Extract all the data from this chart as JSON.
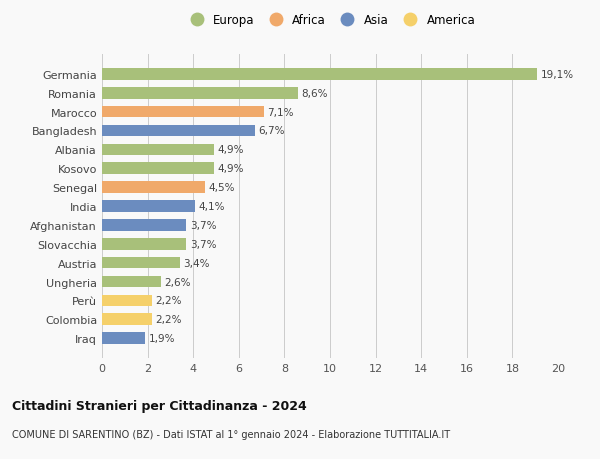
{
  "categories": [
    "Germania",
    "Romania",
    "Marocco",
    "Bangladesh",
    "Albania",
    "Kosovo",
    "Senegal",
    "India",
    "Afghanistan",
    "Slovacchia",
    "Austria",
    "Ungheria",
    "Perù",
    "Colombia",
    "Iraq"
  ],
  "values": [
    19.1,
    8.6,
    7.1,
    6.7,
    4.9,
    4.9,
    4.5,
    4.1,
    3.7,
    3.7,
    3.4,
    2.6,
    2.2,
    2.2,
    1.9
  ],
  "labels": [
    "19,1%",
    "8,6%",
    "7,1%",
    "6,7%",
    "4,9%",
    "4,9%",
    "4,5%",
    "4,1%",
    "3,7%",
    "3,7%",
    "3,4%",
    "2,6%",
    "2,2%",
    "2,2%",
    "1,9%"
  ],
  "continent": [
    "Europa",
    "Europa",
    "Africa",
    "Asia",
    "Europa",
    "Europa",
    "Africa",
    "Asia",
    "Asia",
    "Europa",
    "Europa",
    "Europa",
    "America",
    "America",
    "Asia"
  ],
  "colors": {
    "Europa": "#a8c07a",
    "Africa": "#f0a96a",
    "Asia": "#6b8cbf",
    "America": "#f5d06a"
  },
  "legend_order": [
    "Europa",
    "Africa",
    "Asia",
    "America"
  ],
  "xlim": [
    0,
    20
  ],
  "xticks": [
    0,
    2,
    4,
    6,
    8,
    10,
    12,
    14,
    16,
    18,
    20
  ],
  "title": "Cittadini Stranieri per Cittadinanza - 2024",
  "subtitle": "COMUNE DI SARENTINO (BZ) - Dati ISTAT al 1° gennaio 2024 - Elaborazione TUTTITALIA.IT",
  "background_color": "#f9f9f9"
}
